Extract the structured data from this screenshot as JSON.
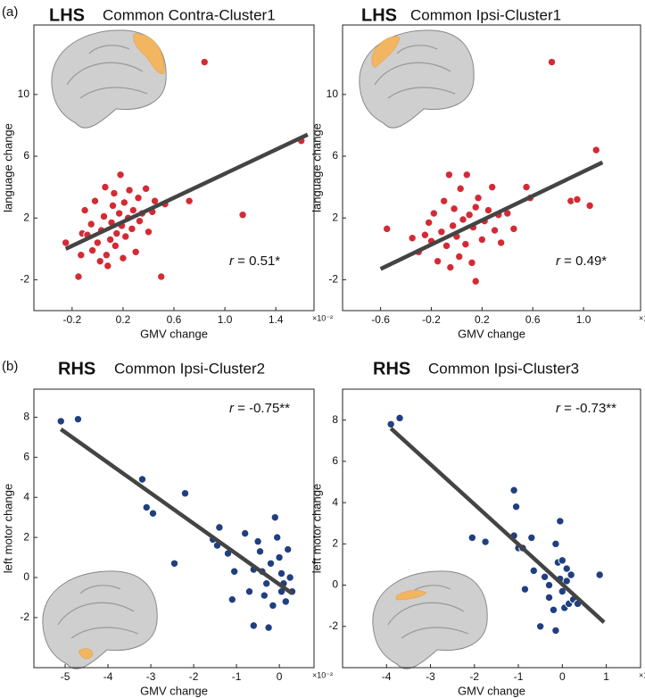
{
  "panels": [
    "(a)",
    "(b)"
  ],
  "chart_data": [
    {
      "type": "scatter",
      "hemisphere": "LHS",
      "title": "Common Contra-Cluster1",
      "xlabel": "GMV change",
      "ylabel": "language change",
      "x_scale_label": "×10⁻²",
      "r_symbol": "r",
      "r_text": " = 0.51*",
      "color": "#d42a34",
      "line_color": "#444444",
      "xlim": [
        -0.5,
        1.7
      ],
      "ylim": [
        -4,
        14.5
      ],
      "xticks": [
        -0.2,
        0.2,
        0.6,
        {
          "value": 1,
          "label": "1.0"
        },
        1.4
      ],
      "yticks": [
        -2,
        2,
        6,
        10
      ],
      "x": [
        -0.25,
        -0.15,
        -0.13,
        -0.12,
        -0.1,
        -0.08,
        -0.05,
        -0.04,
        -0.02,
        0.0,
        0.02,
        0.03,
        0.05,
        0.06,
        0.07,
        0.08,
        0.1,
        0.11,
        0.12,
        0.13,
        0.14,
        0.15,
        0.17,
        0.18,
        0.19,
        0.2,
        0.21,
        0.22,
        0.24,
        0.25,
        0.27,
        0.28,
        0.3,
        0.32,
        0.33,
        0.35,
        0.38,
        0.4,
        0.43,
        0.45,
        0.5,
        0.53,
        0.72,
        0.84,
        1.14,
        1.6
      ],
      "values": [
        0.4,
        -1.8,
        -0.4,
        1.0,
        2.5,
        0.9,
        1.6,
        -0.1,
        3.1,
        0.4,
        -0.8,
        1.2,
        2.1,
        4.0,
        -0.4,
        -1.1,
        0.6,
        1.7,
        2.8,
        3.6,
        0.2,
        1.0,
        2.3,
        4.8,
        1.5,
        -0.6,
        3.0,
        0.8,
        2.0,
        3.8,
        1.3,
        2.5,
        -0.2,
        3.3,
        1.8,
        2.3,
        3.9,
        1.1,
        2.4,
        3.1,
        -1.8,
        2.9,
        3.1,
        12.1,
        2.2,
        7.0
      ],
      "fit": {
        "x": [
          -0.25,
          1.65
        ],
        "y": [
          0.0,
          7.4
        ]
      }
    },
    {
      "type": "scatter",
      "hemisphere": "LHS",
      "title": "Common Ipsi-Cluster1",
      "xlabel": "GMV change",
      "ylabel": "language change",
      "x_scale_label": "×10⁻²",
      "r_symbol": "r",
      "r_text": " = 0.49*",
      "color": "#d42a34",
      "line_color": "#444444",
      "xlim": [
        -0.9,
        1.45
      ],
      "ylim": [
        -4,
        14.5
      ],
      "xticks": [
        -0.6,
        -0.2,
        0.2,
        0.6,
        {
          "value": 1,
          "label": "1.0"
        }
      ],
      "yticks": [
        -2,
        2,
        6,
        10
      ],
      "x": [
        -0.55,
        -0.35,
        -0.3,
        -0.25,
        -0.22,
        -0.2,
        -0.18,
        -0.15,
        -0.12,
        -0.1,
        -0.08,
        -0.06,
        -0.05,
        -0.03,
        -0.02,
        0.0,
        0.02,
        0.03,
        0.05,
        0.07,
        0.08,
        0.1,
        0.12,
        0.13,
        0.15,
        0.15,
        0.17,
        0.2,
        0.22,
        0.25,
        0.28,
        0.3,
        0.33,
        0.35,
        0.4,
        0.45,
        0.55,
        0.58,
        0.75,
        0.9,
        0.95,
        1.05,
        1.1
      ],
      "values": [
        1.3,
        0.7,
        -0.2,
        0.9,
        1.7,
        0.5,
        2.3,
        -0.8,
        1.1,
        3.1,
        0.2,
        4.8,
        -1.2,
        1.5,
        2.6,
        0.8,
        -0.5,
        3.9,
        1.9,
        0.3,
        4.8,
        2.2,
        -0.9,
        1.4,
        2.7,
        -2.1,
        3.3,
        0.6,
        1.8,
        2.5,
        4.0,
        1.2,
        2.2,
        0.4,
        2.3,
        1.3,
        4.0,
        3.3,
        12.1,
        3.1,
        3.2,
        2.8,
        6.4
      ],
      "fit": {
        "x": [
          -0.6,
          1.15
        ],
        "y": [
          -1.3,
          5.6
        ]
      }
    },
    {
      "type": "scatter",
      "hemisphere": "RHS",
      "title": "Common Ipsi-Cluster2",
      "xlabel": "GMV change",
      "ylabel": "left motor change",
      "x_scale_label": "×10⁻²",
      "r_symbol": "r",
      "r_text": " = -0.75**",
      "color": "#203f80",
      "line_color": "#444444",
      "xlim": [
        -5.73,
        0.81
      ],
      "ylim": [
        -4.5,
        9.4
      ],
      "xticks": [
        -5,
        -4,
        -3,
        -2,
        -1,
        0
      ],
      "yticks": [
        -2,
        0,
        2,
        4,
        6,
        8
      ],
      "x": [
        -5.1,
        -4.7,
        -3.2,
        -3.1,
        -2.95,
        -2.2,
        -2.45,
        -1.55,
        -1.45,
        -1.4,
        -1.2,
        -1.1,
        -1.05,
        -0.8,
        -0.7,
        -0.6,
        -0.5,
        -0.45,
        -0.4,
        -0.35,
        -0.3,
        -0.25,
        -0.2,
        -0.1,
        -0.05,
        0.0,
        0.05,
        0.1,
        0.15,
        0.2,
        0.25,
        -0.15,
        0.05,
        -0.6,
        0.3
      ],
      "values": [
        7.8,
        7.9,
        4.9,
        3.5,
        3.2,
        4.2,
        0.7,
        1.9,
        1.6,
        2.5,
        1.2,
        -1.1,
        0.3,
        2.2,
        -0.7,
        -2.4,
        1.8,
        1.3,
        0.3,
        -0.9,
        -0.3,
        -2.5,
        0.7,
        3.0,
        2.0,
        1.0,
        0.2,
        -0.3,
        -1.2,
        1.4,
        0.0,
        -1.4,
        -0.7,
        0.4,
        -0.7
      ],
      "fit": {
        "x": [
          -5.1,
          0.3
        ],
        "y": [
          7.4,
          -0.8
        ]
      }
    },
    {
      "type": "scatter",
      "hemisphere": "RHS",
      "title": "Common Ipsi-Cluster3",
      "xlabel": "GMV change",
      "ylabel": "left motor change",
      "x_scale_label": "×10⁻²",
      "r_symbol": "r",
      "r_text": " = -0.73**",
      "color": "#203f80",
      "line_color": "#444444",
      "xlim": [
        -5,
        1.78
      ],
      "ylim": [
        -4,
        9.5
      ],
      "xticks": [
        -4,
        -3,
        -2,
        -1,
        0,
        1
      ],
      "yticks": [
        -2,
        0,
        2,
        4,
        6,
        8
      ],
      "x": [
        -3.9,
        -3.7,
        -2.05,
        -1.75,
        -1.1,
        -1.05,
        -1.1,
        -1.0,
        -0.9,
        -0.85,
        -0.7,
        -0.65,
        -0.5,
        -0.4,
        -0.3,
        -0.2,
        -0.15,
        -0.1,
        -0.05,
        0.0,
        -0.05,
        0.05,
        0.1,
        0.15,
        0.2,
        0.25,
        0.35,
        0.85,
        -0.15,
        0.0,
        -0.3,
        0.1
      ],
      "values": [
        7.8,
        8.1,
        2.3,
        2.1,
        4.6,
        3.8,
        2.4,
        1.8,
        1.8,
        -0.2,
        2.3,
        0.7,
        -2.0,
        0.4,
        -0.6,
        -1.2,
        2.0,
        1.1,
        3.1,
        1.2,
        0.3,
        -1.1,
        0.8,
        -0.9,
        0.5,
        -0.7,
        -0.9,
        0.5,
        -2.2,
        -0.3,
        0.0,
        0.2
      ],
      "fit": {
        "x": [
          -3.9,
          0.95
        ],
        "y": [
          7.6,
          -1.8
        ]
      }
    }
  ]
}
